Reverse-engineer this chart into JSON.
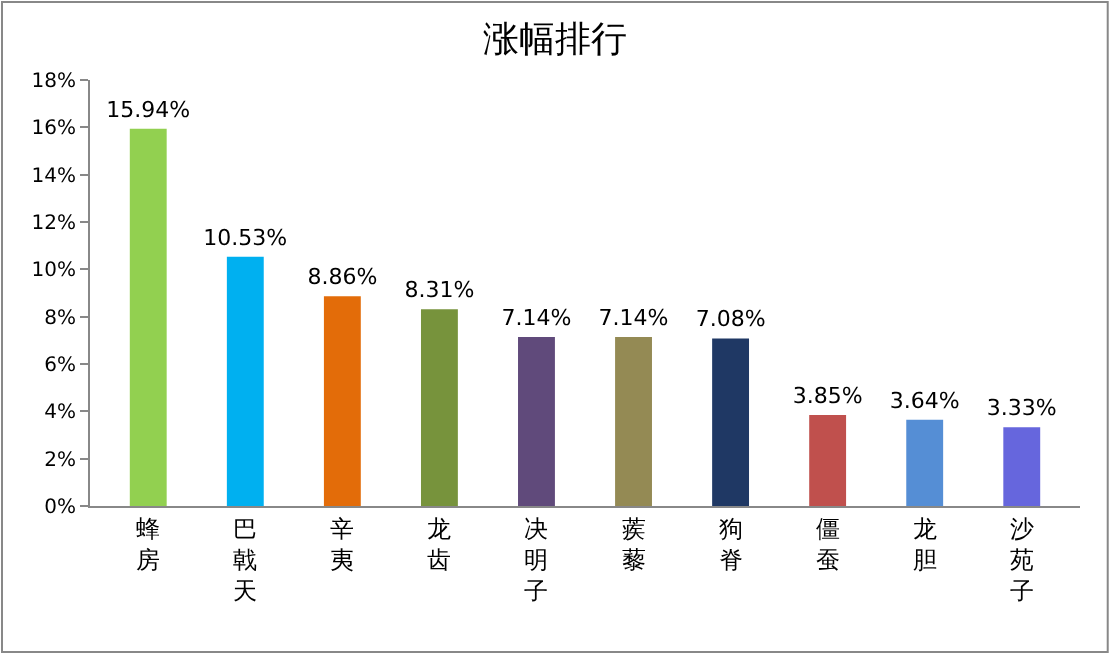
{
  "chart_data": {
    "type": "bar",
    "title": "涨幅排行",
    "categories": [
      "蜂房",
      "巴戟天",
      "辛夷",
      "龙齿",
      "决明子",
      "蒺藜",
      "狗脊",
      "僵蚕",
      "龙胆",
      "沙苑子"
    ],
    "values": [
      15.94,
      10.53,
      8.86,
      8.31,
      7.14,
      7.14,
      7.08,
      3.85,
      3.64,
      3.33
    ],
    "value_labels": [
      "15.94%",
      "10.53%",
      "8.86%",
      "8.31%",
      "7.14%",
      "7.14%",
      "7.08%",
      "3.85%",
      "3.64%",
      "3.33%"
    ],
    "colors": [
      "#92d050",
      "#00b0f0",
      "#e36c09",
      "#77933c",
      "#604a7b",
      "#948a54",
      "#1f3864",
      "#c0504d",
      "#558ed5",
      "#6666dd"
    ],
    "ylim": [
      0,
      18
    ],
    "yticks": [
      {
        "value": 0,
        "label": "0%"
      },
      {
        "value": 2,
        "label": "2%"
      },
      {
        "value": 4,
        "label": "4%"
      },
      {
        "value": 6,
        "label": "6%"
      },
      {
        "value": 8,
        "label": "8%"
      },
      {
        "value": 10,
        "label": "10%"
      },
      {
        "value": 12,
        "label": "12%"
      },
      {
        "value": 14,
        "label": "14%"
      },
      {
        "value": 16,
        "label": "16%"
      },
      {
        "value": 18,
        "label": "18%"
      }
    ],
    "legend": false
  }
}
